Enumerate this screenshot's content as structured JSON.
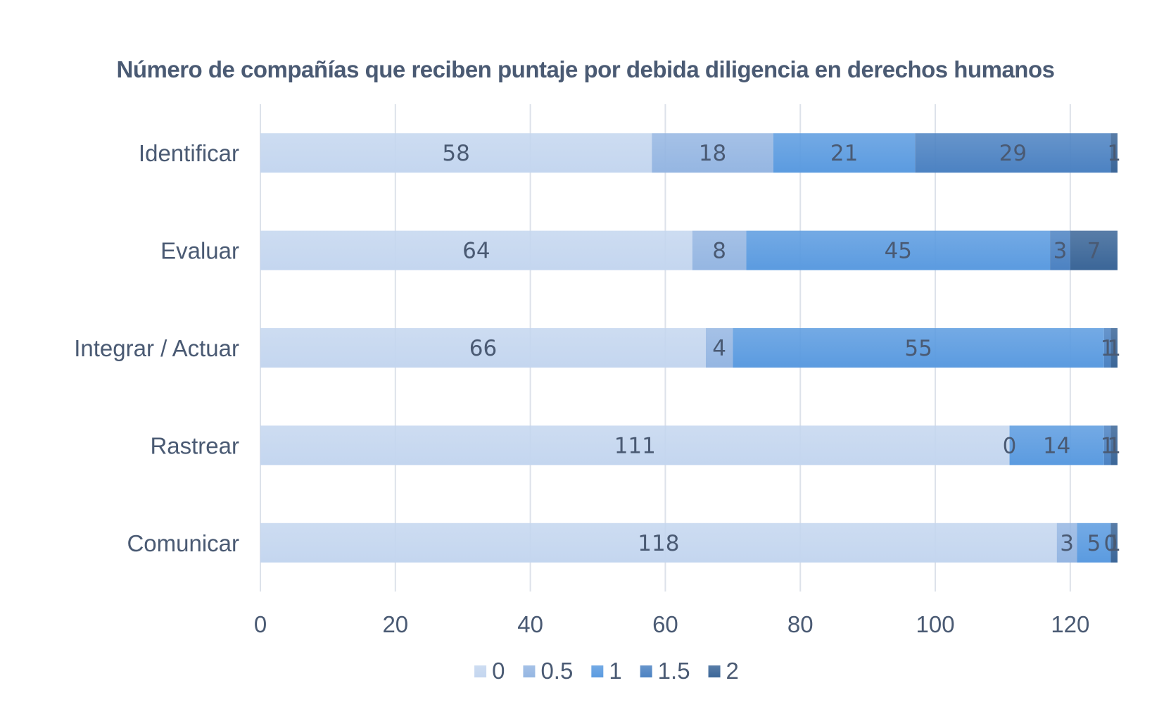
{
  "chart_data": {
    "type": "bar",
    "orientation": "horizontal",
    "stacked": true,
    "title": "Número de compañías que reciben puntaje por debida diligencia en derechos humanos",
    "categories": [
      "Identificar",
      "Evaluar",
      "Integrar / Actuar",
      "Rastrear",
      "Comunicar"
    ],
    "series": [
      {
        "name": "0",
        "color": "#c4d6ef",
        "values": [
          58,
          64,
          66,
          111,
          118
        ],
        "labels": [
          "58",
          "64",
          "66",
          "111",
          "118"
        ]
      },
      {
        "name": "0.5",
        "color": "#95b6e2",
        "values": [
          18,
          8,
          4,
          0,
          3
        ],
        "labels": [
          "18",
          "8",
          "4",
          "0",
          "3"
        ]
      },
      {
        "name": "1",
        "color": "#5b9be0",
        "values": [
          21,
          45,
          55,
          14,
          5
        ],
        "labels": [
          "21",
          "45",
          "55",
          "14",
          "5"
        ]
      },
      {
        "name": "1.5",
        "color": "#4c82c2",
        "values": [
          29,
          3,
          1,
          1,
          0
        ],
        "labels": [
          "29",
          "3",
          "1",
          "1",
          "0"
        ]
      },
      {
        "name": "2",
        "color": "#3b6698",
        "values": [
          1,
          7,
          1,
          1,
          1
        ],
        "labels": [
          "1",
          "7",
          "1",
          "1",
          "1"
        ]
      }
    ],
    "x_ticks": [
      "0",
      "20",
      "40",
      "60",
      "80",
      "100",
      "120"
    ],
    "xlim": [
      0,
      127
    ],
    "grid": "vertical",
    "legend_position": "bottom"
  }
}
